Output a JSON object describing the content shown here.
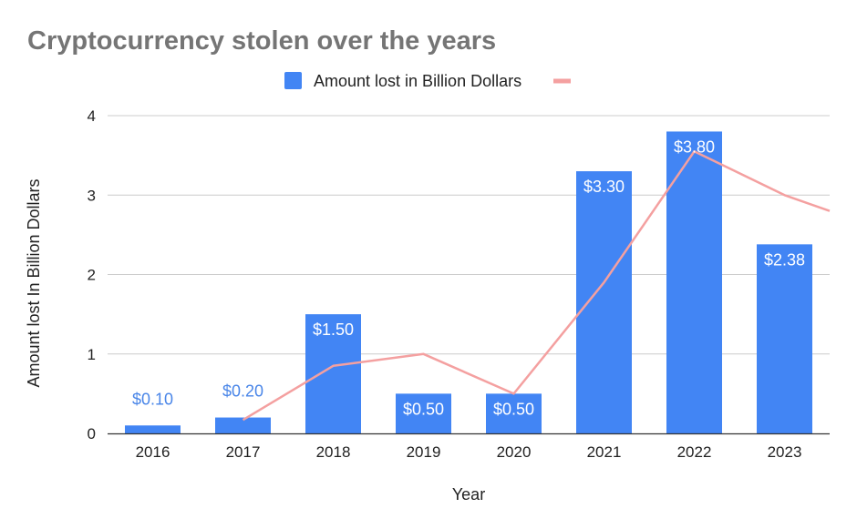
{
  "chart_data": {
    "type": "bar",
    "title": "Cryptocurrency stolen over the years",
    "xlabel": "Year",
    "ylabel": "Amount lost In Billion Dollars",
    "categories": [
      "2016",
      "2017",
      "2018",
      "2019",
      "2020",
      "2021",
      "2022",
      "2023"
    ],
    "ylim": [
      0,
      4
    ],
    "yticks": [
      "0",
      "1",
      "2",
      "3",
      "4"
    ],
    "grid": true,
    "legend_position": "top",
    "series": [
      {
        "name": "Amount lost in Billion Dollars",
        "type": "bar",
        "color": "#4285f4",
        "values": [
          0.1,
          0.2,
          1.5,
          0.5,
          0.5,
          3.3,
          3.8,
          2.38
        ],
        "labels": [
          "$0.10",
          "$0.20",
          "$1.50",
          "$0.50",
          "$0.50",
          "$3.30",
          "$3.80",
          "$2.38"
        ]
      },
      {
        "name": "",
        "type": "line",
        "color": "#f4a0a0",
        "x": [
          "2017",
          "2018",
          "2019",
          "2020",
          "2021",
          "2022",
          "2023"
        ],
        "values": [
          0.17,
          0.85,
          1.0,
          0.5,
          1.9,
          3.55,
          3.0
        ],
        "extends_to_right_edge": 2.8
      }
    ]
  }
}
